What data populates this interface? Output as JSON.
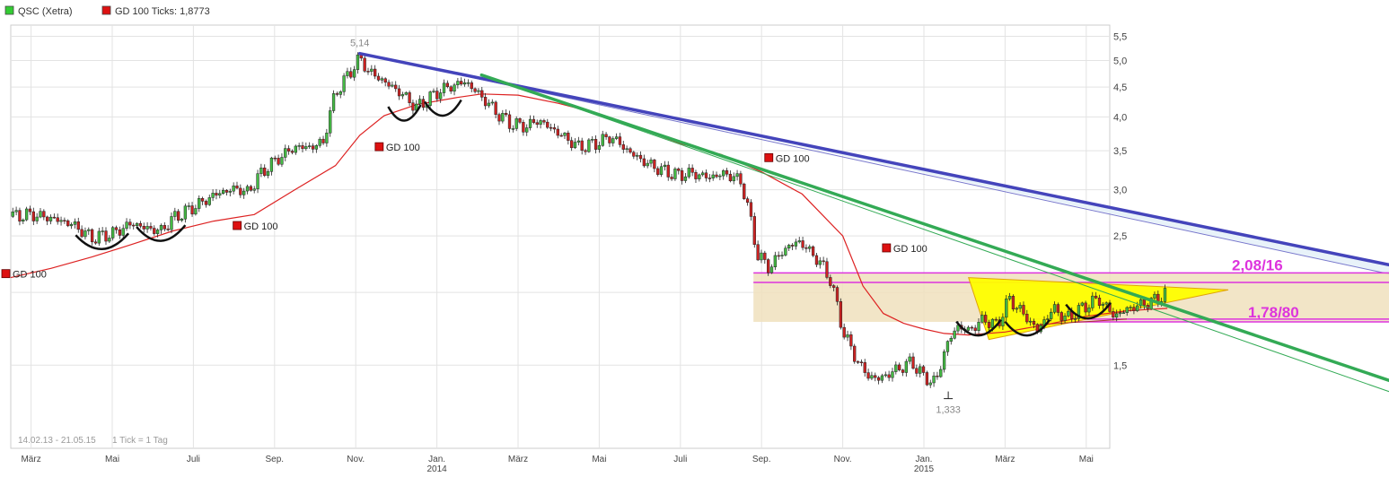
{
  "legend": {
    "items": [
      {
        "label": "QSC (Xetra)",
        "color": "#33cc33"
      },
      {
        "label": "GD 100 Ticks: 1,8773",
        "color": "#dd1111"
      }
    ]
  },
  "footer": {
    "range": "14.02.13 - 21.05.15",
    "tick_note": "1 Tick = 1 Tag"
  },
  "chart_data": {
    "type": "candlestick",
    "y_scale": "log",
    "ylim": [
      1.08,
      5.75
    ],
    "y_ticks": [
      {
        "value": 1.5,
        "label": "1,5"
      },
      {
        "value": 2.0,
        "label": "2,0"
      },
      {
        "value": 2.5,
        "label": "2,5"
      },
      {
        "value": 3.0,
        "label": "3,0"
      },
      {
        "value": 3.5,
        "label": "3,5"
      },
      {
        "value": 4.0,
        "label": "4,0"
      },
      {
        "value": 4.5,
        "label": "4,5"
      },
      {
        "value": 5.0,
        "label": "5,0"
      },
      {
        "value": 5.5,
        "label": "5,5"
      }
    ],
    "x_ticks": [
      {
        "t": 0.5,
        "label": "März",
        "year": ""
      },
      {
        "t": 2.5,
        "label": "Mai",
        "year": ""
      },
      {
        "t": 4.5,
        "label": "Juli",
        "year": ""
      },
      {
        "t": 6.5,
        "label": "Sep.",
        "year": ""
      },
      {
        "t": 8.5,
        "label": "Nov.",
        "year": ""
      },
      {
        "t": 10.5,
        "label": "Jan.",
        "year": "2014"
      },
      {
        "t": 12.5,
        "label": "März",
        "year": ""
      },
      {
        "t": 14.5,
        "label": "Mai",
        "year": ""
      },
      {
        "t": 16.5,
        "label": "Juli",
        "year": ""
      },
      {
        "t": 18.5,
        "label": "Sep.",
        "year": ""
      },
      {
        "t": 20.5,
        "label": "Nov.",
        "year": ""
      },
      {
        "t": 22.5,
        "label": "Jan.",
        "year": "2015"
      },
      {
        "t": 24.5,
        "label": "März",
        "year": ""
      },
      {
        "t": 26.5,
        "label": "Mai",
        "year": ""
      }
    ],
    "x_max": 27.7,
    "price": [
      [
        0,
        2.7
      ],
      [
        0.5,
        2.72
      ],
      [
        1,
        2.68
      ],
      [
        1.5,
        2.62
      ],
      [
        2,
        2.48
      ],
      [
        2.5,
        2.52
      ],
      [
        3,
        2.63
      ],
      [
        3.3,
        2.58
      ],
      [
        3.7,
        2.55
      ],
      [
        4,
        2.68
      ],
      [
        4.3,
        2.75
      ],
      [
        4.7,
        2.85
      ],
      [
        5.1,
        2.96
      ],
      [
        5.6,
        3.02
      ],
      [
        5.8,
        2.95
      ],
      [
        6.2,
        3.22
      ],
      [
        6.6,
        3.4
      ],
      [
        7,
        3.55
      ],
      [
        7.4,
        3.55
      ],
      [
        7.7,
        3.62
      ],
      [
        8,
        4.4
      ],
      [
        8.3,
        4.7
      ],
      [
        8.6,
        5.05
      ],
      [
        8.8,
        4.8
      ],
      [
        9.2,
        4.6
      ],
      [
        9.6,
        4.4
      ],
      [
        10,
        4.15
      ],
      [
        10.3,
        4.3
      ],
      [
        10.6,
        4.45
      ],
      [
        11.2,
        4.6
      ],
      [
        11.5,
        4.4
      ],
      [
        12,
        4.05
      ],
      [
        12.3,
        3.9
      ],
      [
        12.7,
        3.85
      ],
      [
        13,
        3.95
      ],
      [
        13.5,
        3.75
      ],
      [
        14,
        3.55
      ],
      [
        14.4,
        3.6
      ],
      [
        14.8,
        3.7
      ],
      [
        15.2,
        3.5
      ],
      [
        15.6,
        3.35
      ],
      [
        16,
        3.25
      ],
      [
        16.4,
        3.18
      ],
      [
        16.8,
        3.2
      ],
      [
        17.2,
        3.15
      ],
      [
        17.6,
        3.2
      ],
      [
        18,
        3.1
      ],
      [
        18.2,
        2.72
      ],
      [
        18.4,
        2.32
      ],
      [
        18.7,
        2.2
      ],
      [
        19,
        2.35
      ],
      [
        19.4,
        2.45
      ],
      [
        19.7,
        2.35
      ],
      [
        20,
        2.22
      ],
      [
        20.2,
        2.1
      ],
      [
        20.5,
        1.72
      ],
      [
        20.8,
        1.55
      ],
      [
        21.1,
        1.44
      ],
      [
        21.4,
        1.42
      ],
      [
        21.8,
        1.47
      ],
      [
        22.2,
        1.52
      ],
      [
        22.5,
        1.43
      ],
      [
        22.8,
        1.4
      ],
      [
        23,
        1.58
      ],
      [
        23.3,
        1.75
      ],
      [
        23.6,
        1.72
      ],
      [
        24,
        1.8
      ],
      [
        24.3,
        1.75
      ],
      [
        24.6,
        1.95
      ],
      [
        25,
        1.82
      ],
      [
        25.3,
        1.72
      ],
      [
        25.7,
        1.88
      ],
      [
        26,
        1.8
      ],
      [
        26.4,
        1.88
      ],
      [
        26.8,
        1.95
      ],
      [
        27.2,
        1.82
      ],
      [
        27.5,
        1.87
      ],
      [
        27.8,
        1.9
      ],
      [
        28.2,
        1.94
      ],
      [
        28.5,
        2.0
      ]
    ],
    "gd100": [
      [
        0,
        2.12
      ],
      [
        1,
        2.2
      ],
      [
        2,
        2.3
      ],
      [
        3,
        2.42
      ],
      [
        4,
        2.55
      ],
      [
        5,
        2.65
      ],
      [
        6,
        2.72
      ],
      [
        7,
        3.0
      ],
      [
        8,
        3.3
      ],
      [
        8.6,
        3.72
      ],
      [
        9.2,
        4.02
      ],
      [
        10,
        4.2
      ],
      [
        11,
        4.32
      ],
      [
        11.6,
        4.38
      ],
      [
        12.5,
        4.36
      ],
      [
        13.5,
        4.22
      ],
      [
        14.5,
        4.05
      ],
      [
        15.5,
        3.82
      ],
      [
        16.5,
        3.6
      ],
      [
        17.5,
        3.45
      ],
      [
        18.5,
        3.22
      ],
      [
        19.5,
        2.95
      ],
      [
        20.5,
        2.5
      ],
      [
        21,
        2.05
      ],
      [
        21.5,
        1.84
      ],
      [
        22,
        1.77
      ],
      [
        22.5,
        1.73
      ],
      [
        23,
        1.7
      ],
      [
        23.6,
        1.69
      ],
      [
        24.5,
        1.71
      ],
      [
        25.5,
        1.76
      ],
      [
        26.5,
        1.82
      ],
      [
        27.5,
        1.86
      ],
      [
        28.5,
        1.8773
      ]
    ],
    "annotations": [
      {
        "text": "5,14",
        "t": 8.6,
        "v": 5.14
      },
      {
        "text": "1,333",
        "t": 23.1,
        "v": 1.333
      }
    ],
    "signals": [
      {
        "label": "GD 100",
        "t": 0.0,
        "v": 2.15
      },
      {
        "label": "GD 100",
        "t": 5.7,
        "v": 2.6
      },
      {
        "label": "GD 100",
        "t": 9.2,
        "v": 3.55
      },
      {
        "label": "GD 100",
        "t": 18.8,
        "v": 3.4
      },
      {
        "label": "GD 100",
        "t": 21.7,
        "v": 2.38
      }
    ],
    "trendlines": [
      {
        "name": "blue-resistance",
        "color": "#4444bb",
        "from": [
          8.6,
          5.14
        ],
        "to": [
          35.5,
          2.12
        ],
        "width": 3.5
      },
      {
        "name": "green-trend",
        "color": "#33aa55",
        "from": [
          11.6,
          4.72
        ],
        "to": [
          35.5,
          1.3
        ],
        "width": 3.5
      }
    ],
    "levels": [
      {
        "label": "2,08/16",
        "values": [
          2.08,
          2.16
        ],
        "color": "#dd33dd"
      },
      {
        "label": "1,78/80",
        "values": [
          1.78,
          1.8
        ],
        "color": "#dd33dd"
      }
    ]
  }
}
